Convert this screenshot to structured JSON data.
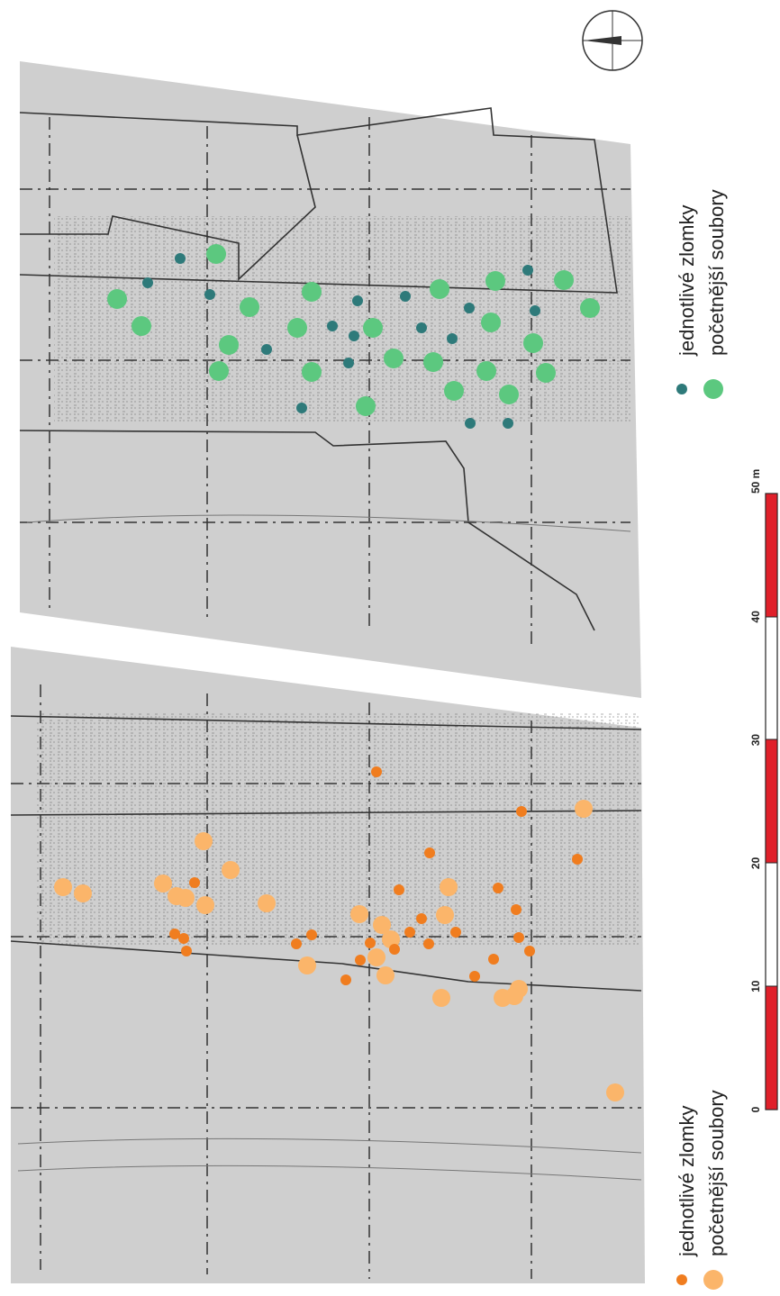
{
  "top_map": {
    "legend": {
      "small": "jednotlivé zlomky",
      "large": "početnější soubory"
    }
  },
  "bottom_map": {
    "legend": {
      "small": "jednotlivé zlomky",
      "large": "početnější soubory"
    }
  },
  "scale_bar": {
    "labels": [
      "0",
      "10",
      "20",
      "30",
      "40",
      "50 m"
    ]
  }
}
